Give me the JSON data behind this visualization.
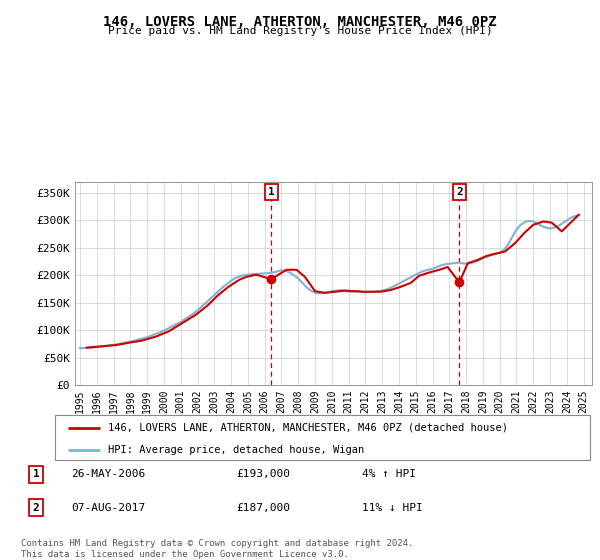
{
  "title": "146, LOVERS LANE, ATHERTON, MANCHESTER, M46 0PZ",
  "subtitle": "Price paid vs. HM Land Registry's House Price Index (HPI)",
  "ylabel_ticks": [
    "£0",
    "£50K",
    "£100K",
    "£150K",
    "£200K",
    "£250K",
    "£300K",
    "£350K"
  ],
  "ytick_values": [
    0,
    50000,
    100000,
    150000,
    200000,
    250000,
    300000,
    350000
  ],
  "ylim": [
    0,
    370000
  ],
  "xlim_start": 1994.7,
  "xlim_end": 2025.5,
  "xticks": [
    1995,
    1996,
    1997,
    1998,
    1999,
    2000,
    2001,
    2002,
    2003,
    2004,
    2005,
    2006,
    2007,
    2008,
    2009,
    2010,
    2011,
    2012,
    2013,
    2014,
    2015,
    2016,
    2017,
    2018,
    2019,
    2020,
    2021,
    2022,
    2023,
    2024,
    2025
  ],
  "hpi_color": "#7fb3d3",
  "price_color": "#cc0000",
  "marker1_x": 2006.4,
  "marker1_y": 193000,
  "marker1_label": "1",
  "marker1_date": "26-MAY-2006",
  "marker1_price": "£193,000",
  "marker1_change": "4% ↑ HPI",
  "marker2_x": 2017.6,
  "marker2_y": 187000,
  "marker2_label": "2",
  "marker2_date": "07-AUG-2017",
  "marker2_price": "£187,000",
  "marker2_change": "11% ↓ HPI",
  "legend_line1": "146, LOVERS LANE, ATHERTON, MANCHESTER, M46 0PZ (detached house)",
  "legend_line2": "HPI: Average price, detached house, Wigan",
  "footer": "Contains HM Land Registry data © Crown copyright and database right 2024.\nThis data is licensed under the Open Government Licence v3.0.",
  "hpi_x": [
    1995.0,
    1995.25,
    1995.5,
    1995.75,
    1996.0,
    1996.25,
    1996.5,
    1996.75,
    1997.0,
    1997.25,
    1997.5,
    1997.75,
    1998.0,
    1998.25,
    1998.5,
    1998.75,
    1999.0,
    1999.25,
    1999.5,
    1999.75,
    2000.0,
    2000.25,
    2000.5,
    2000.75,
    2001.0,
    2001.25,
    2001.5,
    2001.75,
    2002.0,
    2002.25,
    2002.5,
    2002.75,
    2003.0,
    2003.25,
    2003.5,
    2003.75,
    2004.0,
    2004.25,
    2004.5,
    2004.75,
    2005.0,
    2005.25,
    2005.5,
    2005.75,
    2006.0,
    2006.25,
    2006.5,
    2006.75,
    2007.0,
    2007.25,
    2007.5,
    2007.75,
    2008.0,
    2008.25,
    2008.5,
    2008.75,
    2009.0,
    2009.25,
    2009.5,
    2009.75,
    2010.0,
    2010.25,
    2010.5,
    2010.75,
    2011.0,
    2011.25,
    2011.5,
    2011.75,
    2012.0,
    2012.25,
    2012.5,
    2012.75,
    2013.0,
    2013.25,
    2013.5,
    2013.75,
    2014.0,
    2014.25,
    2014.5,
    2014.75,
    2015.0,
    2015.25,
    2015.5,
    2015.75,
    2016.0,
    2016.25,
    2016.5,
    2016.75,
    2017.0,
    2017.25,
    2017.5,
    2017.75,
    2018.0,
    2018.25,
    2018.5,
    2018.75,
    2019.0,
    2019.25,
    2019.5,
    2019.75,
    2020.0,
    2020.25,
    2020.5,
    2020.75,
    2021.0,
    2021.25,
    2021.5,
    2021.75,
    2022.0,
    2022.25,
    2022.5,
    2022.75,
    2023.0,
    2023.25,
    2023.5,
    2023.75,
    2024.0,
    2024.25,
    2024.5,
    2024.75
  ],
  "hpi_y": [
    67000,
    67500,
    68000,
    68500,
    69000,
    70000,
    71000,
    72000,
    73000,
    74500,
    76000,
    77500,
    79000,
    81000,
    83000,
    85000,
    87000,
    90000,
    93000,
    96000,
    99000,
    103000,
    107000,
    111000,
    115000,
    120000,
    125000,
    130000,
    136000,
    143000,
    150000,
    157000,
    164000,
    171000,
    178000,
    184000,
    190000,
    195000,
    198000,
    200000,
    201000,
    202000,
    202500,
    203000,
    203500,
    204000,
    205000,
    207000,
    209000,
    208000,
    205000,
    200000,
    194000,
    186000,
    178000,
    172000,
    168000,
    167000,
    167500,
    169000,
    171000,
    172000,
    173000,
    172000,
    170000,
    170500,
    171000,
    170000,
    169000,
    169500,
    170000,
    171000,
    172000,
    174000,
    177000,
    181000,
    185000,
    189000,
    193000,
    197000,
    201000,
    205000,
    208000,
    210000,
    212000,
    215000,
    218000,
    220000,
    221000,
    222000,
    223000,
    222000,
    221000,
    222000,
    224000,
    227000,
    231000,
    234000,
    237000,
    239000,
    241000,
    246000,
    256000,
    270000,
    283000,
    292000,
    297000,
    299000,
    298000,
    294000,
    290000,
    287000,
    285000,
    287000,
    290000,
    295000,
    300000,
    305000,
    308000,
    310000
  ],
  "price_x": [
    1995.4,
    1996.1,
    1997.2,
    1997.9,
    1998.7,
    1999.5,
    2000.3,
    2001.1,
    2001.9,
    2002.6,
    2003.2,
    2003.8,
    2004.5,
    2004.9,
    2005.5,
    2006.4,
    2007.3,
    2007.9,
    2008.4,
    2009.0,
    2009.6,
    2010.2,
    2010.8,
    2011.3,
    2011.9,
    2012.4,
    2012.9,
    2013.5,
    2014.1,
    2014.7,
    2015.2,
    2015.8,
    2016.4,
    2016.9,
    2017.6,
    2018.1,
    2018.7,
    2019.2,
    2019.7,
    2020.3,
    2020.9,
    2021.5,
    2022.0,
    2022.6,
    2023.1,
    2023.7,
    2024.2,
    2024.7
  ],
  "price_y": [
    68000,
    70000,
    73000,
    77000,
    81000,
    88000,
    98000,
    113000,
    128000,
    145000,
    163000,
    178000,
    192000,
    197000,
    201000,
    193000,
    210000,
    210000,
    197000,
    171000,
    168000,
    170000,
    172000,
    171000,
    170000,
    170000,
    170000,
    173000,
    179000,
    186000,
    199000,
    205000,
    210000,
    215000,
    187000,
    222000,
    228000,
    235000,
    239000,
    243000,
    258000,
    278000,
    292000,
    298000,
    296000,
    280000,
    295000,
    310000
  ]
}
